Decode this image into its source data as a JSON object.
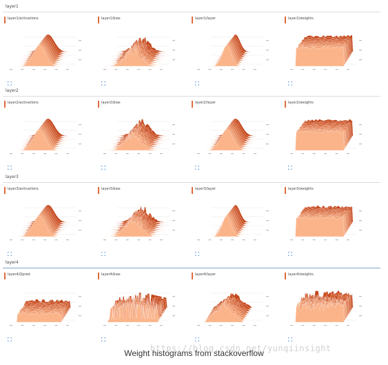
{
  "sections": [
    {
      "title": "layer1",
      "cards": [
        "layer1/activations",
        "layer1/bias",
        "layer1/layer",
        "layer1/weights"
      ]
    },
    {
      "title": "layer2",
      "cards": [
        "layer2/activations",
        "layer2/bias",
        "layer2/layer",
        "layer2/weights"
      ]
    },
    {
      "title": "layer3",
      "cards": [
        "layer3/activations",
        "layer3/bias",
        "layer3/layer",
        "layer3/weights"
      ]
    },
    {
      "title": "layer4",
      "cards": [
        "layer4/Qpred",
        "layer4/bias",
        "layer4/layer",
        "layer4/weights"
      ]
    }
  ],
  "caption": "Weight histograms from stackoverflow",
  "watermark": "https://blog.csdn.net/yunqiinsight",
  "colors": {
    "accent": "#e06a3b",
    "light": "#fbb48a",
    "dark": "#c4461b",
    "divider": "#dcdcdc",
    "active_divider": "#7fa6cc"
  },
  "icons": {
    "expand": "expand-icon"
  }
}
